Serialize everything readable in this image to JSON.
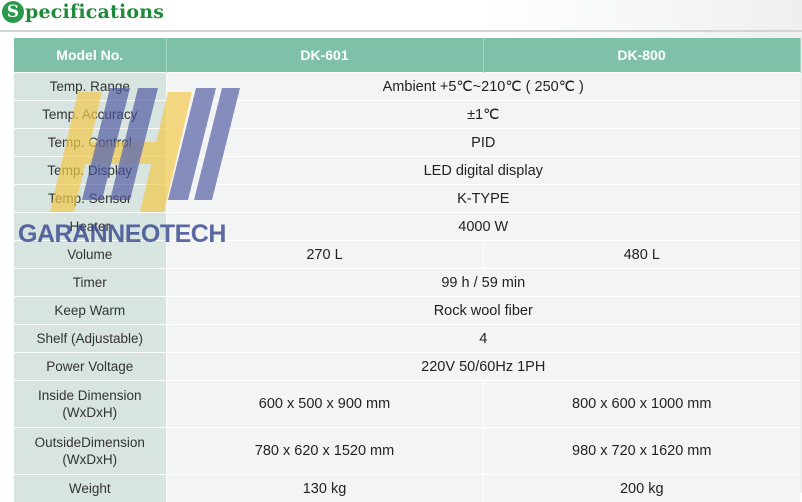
{
  "heading": {
    "initial": "S",
    "rest": "pecifications"
  },
  "table": {
    "headers": [
      "Model No.",
      "DK-601",
      "DK-800"
    ],
    "rows": [
      {
        "label": "Temp. Range",
        "value": "Ambient +5℃~210℃ ( 250℃ )"
      },
      {
        "label": "Temp. Accuracy",
        "value": "±1℃"
      },
      {
        "label": "Temp. Control",
        "value": "PID"
      },
      {
        "label": "Temp. Display",
        "value": "LED digital display"
      },
      {
        "label": "Temp. Sensor",
        "value": "K-TYPE"
      },
      {
        "label": "Heater",
        "value": "4000 W"
      },
      {
        "label": "Volume",
        "dk601": "270 L",
        "dk800": "480 L"
      },
      {
        "label": "Timer",
        "value": "99 h / 59 min"
      },
      {
        "label": "Keep Warm",
        "value": "Rock wool fiber"
      },
      {
        "label": "Shelf (Adjustable)",
        "value": "4"
      },
      {
        "label": "Power Voltage",
        "value": "220V 50/60Hz 1PH"
      },
      {
        "label_line1": "Inside Dimension",
        "label_line2": "(WxDxH)",
        "dk601": "600 x 500 x 900 mm",
        "dk800": "800 x 600 x 1000 mm"
      },
      {
        "label_line1": "OutsideDimension",
        "label_line2": "(WxDxH)",
        "dk601": "780 x 620 x 1520  mm",
        "dk800": "980 x 720 x 1620 mm"
      },
      {
        "label": "Weight",
        "dk601": "130 kg",
        "dk800": "200 kg"
      }
    ]
  },
  "watermark": {
    "text": "GARANNEOTECH"
  },
  "colors": {
    "header_green": "#7fc1a8",
    "label_cell": "#d7e4df",
    "value_cell": "#f3f5f4",
    "heading_green": "#1f8a3a",
    "watermark_blue": "#3a4a90",
    "watermark_yellow": "#f2c94c"
  }
}
